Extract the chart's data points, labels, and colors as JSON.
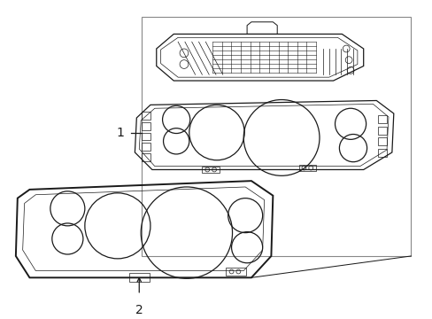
{
  "background_color": "#ffffff",
  "line_color": "#1a1a1a",
  "line_width": 0.9,
  "label1": "1",
  "label2": "2",
  "box_color": "#ffffff",
  "box_edge_color": "#888888"
}
